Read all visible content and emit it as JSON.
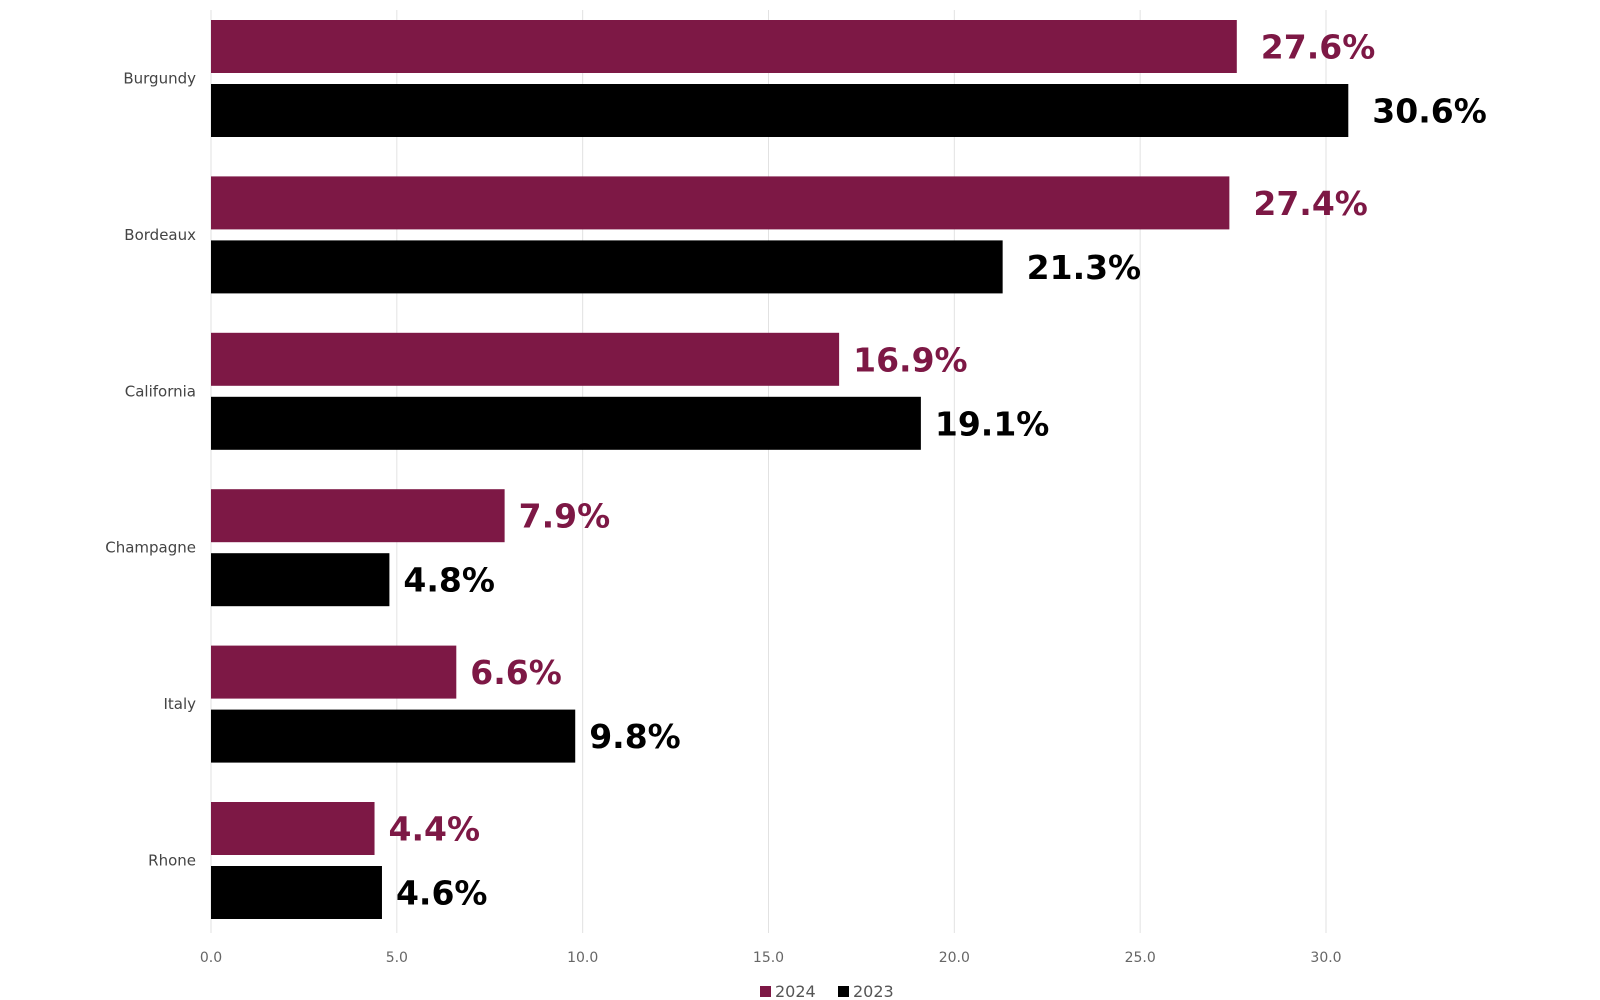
{
  "chart_data": {
    "type": "bar",
    "orientation": "horizontal",
    "categories": [
      "Burgundy",
      "Bordeaux",
      "California",
      "Champagne",
      "Italy",
      "Rhone"
    ],
    "series": [
      {
        "name": "2024",
        "color": "#7d1845",
        "values": [
          27.6,
          27.4,
          16.9,
          7.9,
          6.6,
          4.4
        ],
        "labels": [
          "27.6%",
          "27.4%",
          "16.9%",
          "7.9%",
          "6.6%",
          "4.4%"
        ]
      },
      {
        "name": "2023",
        "color": "#000000",
        "values": [
          30.6,
          21.3,
          19.1,
          4.8,
          9.8,
          4.6
        ],
        "labels": [
          "30.6%",
          "21.3%",
          "19.1%",
          "4.8%",
          "9.8%",
          "4.6%"
        ]
      }
    ],
    "xlim": [
      0,
      30
    ],
    "ticks": [
      "0.0",
      "5.0",
      "10.0",
      "15.0",
      "20.0",
      "25.0",
      "30.0"
    ],
    "grid": true,
    "legend_position": "bottom-center"
  }
}
